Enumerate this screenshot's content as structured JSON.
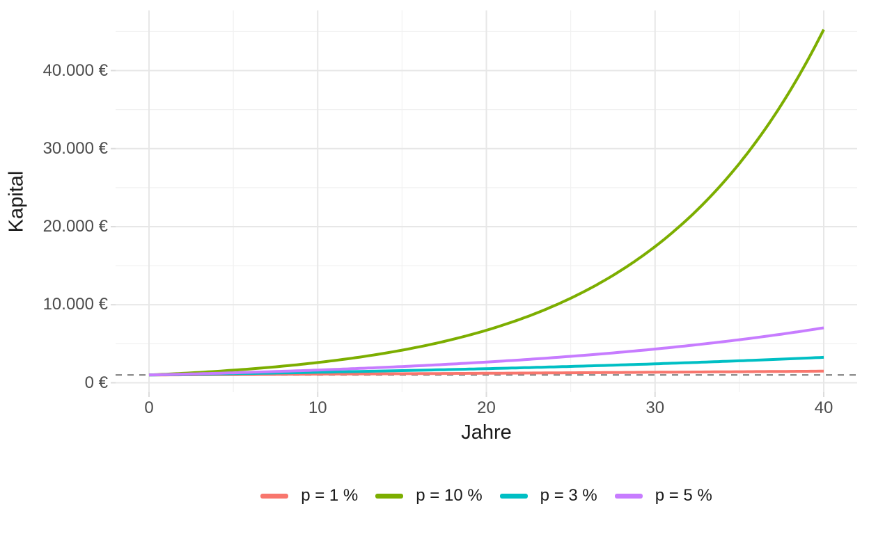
{
  "chart_data": {
    "type": "line",
    "title": "",
    "xlabel": "Jahre",
    "ylabel": "Kapital",
    "x_range": [
      0,
      40
    ],
    "y_range_displayed": [
      0,
      45259
    ],
    "grid": true,
    "legend_position": "bottom",
    "initial_capital": 1000,
    "x_sample_years": [
      0,
      5,
      10,
      15,
      20,
      25,
      30,
      35,
      40
    ],
    "series": [
      {
        "name": "p = 1 %",
        "rate_percent": 1,
        "color": "#F8766D",
        "values_every_5_years": [
          1000,
          1051,
          1105,
          1161,
          1220,
          1282,
          1348,
          1417,
          1489
        ]
      },
      {
        "name": "p = 10 %",
        "rate_percent": 10,
        "color": "#7CAE00",
        "values_every_5_years": [
          1000,
          1611,
          2594,
          4177,
          6728,
          10835,
          17449,
          28102,
          45259
        ]
      },
      {
        "name": "p = 3 %",
        "rate_percent": 3,
        "color": "#00BFC4",
        "values_every_5_years": [
          1000,
          1159,
          1344,
          1558,
          1806,
          2094,
          2427,
          2814,
          3262
        ]
      },
      {
        "name": "p = 5 %",
        "rate_percent": 5,
        "color": "#C77CFF",
        "values_every_5_years": [
          1000,
          1276,
          1629,
          2079,
          2653,
          3386,
          4322,
          5516,
          7040
        ]
      }
    ],
    "x_ticks": [
      {
        "value": 0,
        "label": "0"
      },
      {
        "value": 10,
        "label": "10"
      },
      {
        "value": 20,
        "label": "20"
      },
      {
        "value": 30,
        "label": "30"
      },
      {
        "value": 40,
        "label": "40"
      }
    ],
    "y_ticks": [
      {
        "value": 0,
        "label": "0 €"
      },
      {
        "value": 10000,
        "label": "10.000 €"
      },
      {
        "value": 20000,
        "label": "20.000 €"
      },
      {
        "value": 30000,
        "label": "30.000 €"
      },
      {
        "value": 40000,
        "label": "40.000 €"
      }
    ],
    "reference_line": {
      "value": 1000,
      "style": "dashed",
      "color": "#848484"
    },
    "colors": {
      "grid_major": "#e7e7e7",
      "grid_minor": "#f1f1f1",
      "axis_tick": "#dcdcdc",
      "tick_text": "#4d4d4d",
      "title_text": "#1a1a1a",
      "background": "#ffffff"
    }
  }
}
